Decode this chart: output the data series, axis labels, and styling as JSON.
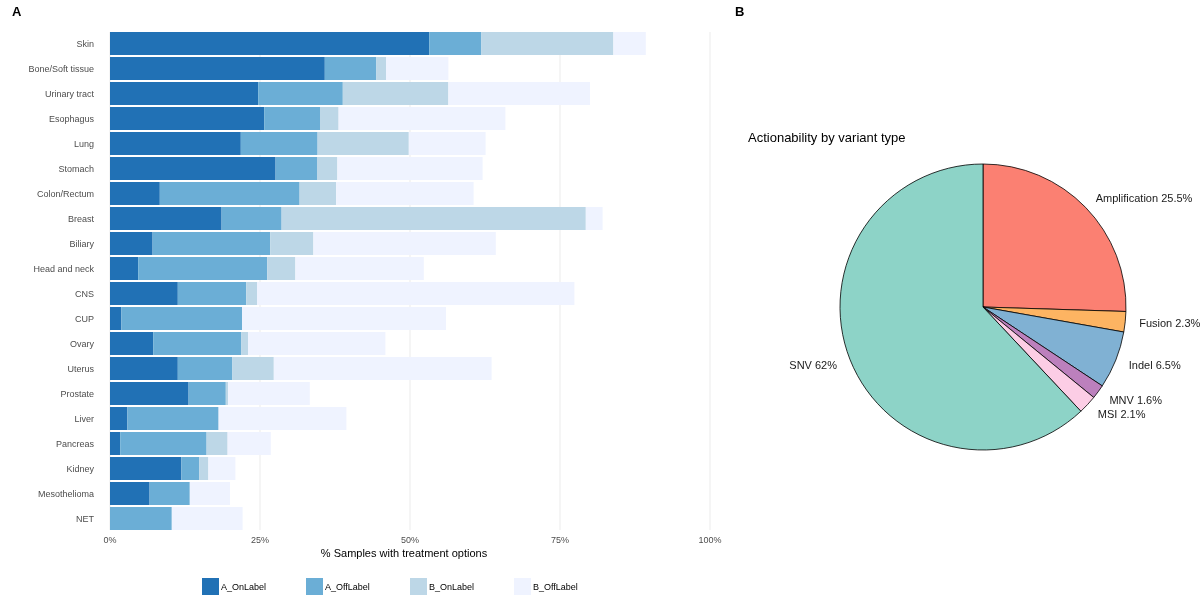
{
  "chart_data": [
    {
      "type": "bar",
      "orientation": "horizontal",
      "stacked": true,
      "annotations": [
        "A"
      ],
      "xlabel": "% Samples with treatment options",
      "categories": [
        "Skin",
        "Bone/Soft tissue",
        "Urinary tract",
        "Esophagus",
        "Lung",
        "Stomach",
        "Colon/Rectum",
        "Breast",
        "Biliary",
        "Head and neck",
        "CNS",
        "CUP",
        "Ovary",
        "Uterus",
        "Prostate",
        "Liver",
        "Pancreas",
        "Kidney",
        "Mesothelioma",
        "NET"
      ],
      "series": [
        {
          "name": "A_OnLabel",
          "color": "#2171b5",
          "values": [
            53.2,
            35.8,
            24.7,
            25.7,
            21.8,
            27.6,
            8.3,
            18.6,
            7.1,
            4.7,
            11.3,
            1.9,
            7.2,
            11.3,
            13.1,
            2.9,
            1.7,
            11.9,
            6.6,
            0
          ]
        },
        {
          "name": "A_OffLabel",
          "color": "#6baed6",
          "values": [
            8.7,
            8.6,
            14.1,
            9.3,
            12.8,
            6.9,
            23.3,
            10.0,
            19.6,
            21.5,
            11.4,
            20.1,
            14.7,
            9.1,
            6.2,
            15.2,
            14.4,
            3.0,
            6.7,
            10.3
          ]
        },
        {
          "name": "B_OnLabel",
          "color": "#bdd7e7",
          "values": [
            22.0,
            1.6,
            17.6,
            3.1,
            15.2,
            3.4,
            6.1,
            50.7,
            7.2,
            4.7,
            1.8,
            0,
            1.1,
            6.9,
            0.4,
            0,
            3.5,
            1.5,
            0,
            0
          ]
        },
        {
          "name": "B_OffLabel",
          "color": "#eff3ff",
          "values": [
            5.4,
            10.4,
            23.6,
            27.8,
            12.8,
            24.2,
            22.9,
            2.8,
            30.4,
            21.4,
            52.9,
            34.0,
            22.9,
            36.3,
            13.6,
            21.3,
            7.2,
            4.5,
            6.7,
            11.8
          ]
        }
      ],
      "xlim": [
        0,
        100
      ],
      "xticks": [
        {
          "value": 0,
          "label": "0%"
        },
        {
          "value": 25,
          "label": "25%"
        },
        {
          "value": 50,
          "label": "50%"
        },
        {
          "value": 75,
          "label": "75%"
        },
        {
          "value": 100,
          "label": "100%"
        }
      ],
      "grid": "x",
      "legend": "bottom"
    },
    {
      "type": "pie",
      "annotations": [
        "B"
      ],
      "title": "Actionability by variant type",
      "categories": [
        "Amplification",
        "Fusion",
        "Indel",
        "MNV",
        "MSI",
        "SNV"
      ],
      "values": [
        25.5,
        2.3,
        6.5,
        1.6,
        2.1,
        62
      ],
      "value_labels": [
        "25.5%",
        "2.3%",
        "6.5%",
        "1.6%",
        "2.1%",
        "62%"
      ],
      "colors": [
        "#fb8072",
        "#fdb462",
        "#80b1d3",
        "#bc80bd",
        "#fccde5",
        "#8dd3c7"
      ]
    }
  ]
}
